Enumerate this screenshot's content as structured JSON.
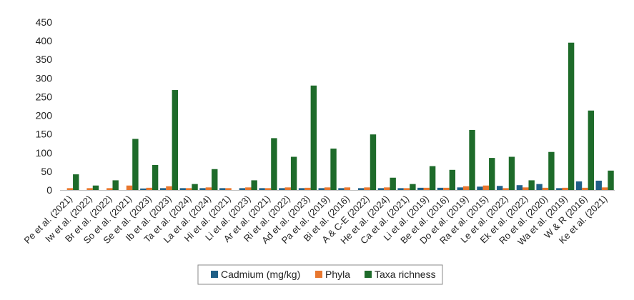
{
  "chart_data": {
    "type": "bar",
    "title": "",
    "xlabel": "",
    "ylabel": "",
    "ylim": [
      0,
      450
    ],
    "yticks": [
      "0",
      "50",
      "100",
      "150",
      "200",
      "250",
      "300",
      "350",
      "400",
      "450"
    ],
    "grid": false,
    "legend_position": "bottom",
    "categories": [
      "Pe et al. (2021)",
      "Iw et al. (2022)",
      "Br et al. (2022)",
      "So et al. (2021)",
      "Se et al. (2023)",
      "Ib et al. (2023)",
      "Ta et al. (2024)",
      "La et al. (2024)",
      "Hi et al. (2021)",
      "Li et al. (2023)",
      "Ar et al. (2021)",
      "Ri et al. (2022)",
      "Ad et al. (2023)",
      "Pa et al. (2019)",
      "Bi et al. (2016)",
      "A & C-E (2022)",
      "He et al. (2024)",
      "Ca et al. (2021)",
      "Li et al. (2019)",
      "Be et al. (2016)",
      "Do et al. (2019)",
      "Ra et al. (2015)",
      "Le et al. (2022)",
      "Ek et al. (2022)",
      "Ro et al. (2020)",
      "Wa et al. (2019)",
      "W & R   (2016)",
      "Ke et al. (2021)"
    ],
    "series": [
      {
        "name": "Cadmium (mg/kg)",
        "color": "#1f5f86",
        "values": [
          0,
          0,
          0,
          0,
          4,
          5,
          5,
          5,
          5,
          5,
          5,
          5,
          5,
          5,
          5,
          5,
          5,
          5,
          6,
          6,
          7,
          9,
          11,
          13,
          16,
          5,
          23,
          25
        ]
      },
      {
        "name": "Phyla",
        "color": "#e8772e",
        "values": [
          5,
          5,
          5,
          12,
          6,
          10,
          5,
          7,
          5,
          7,
          5,
          7,
          6,
          7,
          7,
          7,
          7,
          5,
          6,
          6,
          10,
          12,
          5,
          7,
          6,
          6,
          6,
          7
        ]
      },
      {
        "name": "Taxa richness",
        "color": "#1e6b2a",
        "values": [
          42,
          12,
          26,
          137,
          67,
          268,
          16,
          56,
          0,
          26,
          139,
          89,
          280,
          111,
          0,
          149,
          33,
          16,
          64,
          54,
          161,
          86,
          89,
          26,
          102,
          395,
          213,
          52
        ]
      }
    ]
  }
}
